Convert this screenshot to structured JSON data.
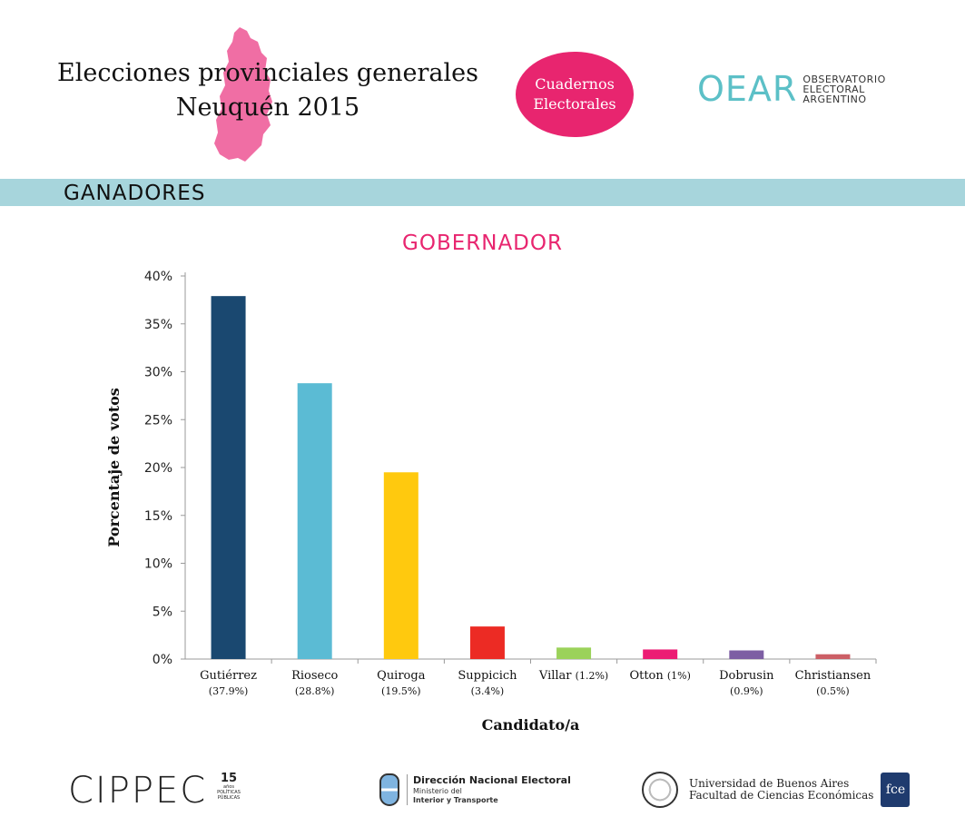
{
  "header": {
    "title_line1": "Elecciones provinciales generales",
    "title_line2": "Neuquén 2015",
    "badge_line1": "Cuadernos",
    "badge_line2": "Electorales",
    "org_mark": "OEAR",
    "org_line1": "OBSERVATORIO",
    "org_line2": "ELECTORAL",
    "org_line3": "ARGENTINO"
  },
  "section": {
    "label": "GANADORES"
  },
  "chart_data": {
    "type": "bar",
    "title": "GOBERNADOR",
    "xlabel": "Candidato/a",
    "ylabel": "Porcentaje de votos",
    "ylim": [
      0,
      40
    ],
    "yticks": [
      0,
      5,
      10,
      15,
      20,
      25,
      30,
      35,
      40
    ],
    "ytick_labels": [
      "0%",
      "5%",
      "10%",
      "15%",
      "20%",
      "25%",
      "30%",
      "35%",
      "40%"
    ],
    "categories": [
      {
        "name": "Gutiérrez",
        "pct_label": "(37.9%)",
        "inline": false
      },
      {
        "name": "Rioseco",
        "pct_label": "(28.8%)",
        "inline": false
      },
      {
        "name": "Quiroga",
        "pct_label": "(19.5%)",
        "inline": false
      },
      {
        "name": "Suppicich",
        "pct_label": "(3.4%)",
        "inline": false
      },
      {
        "name": "Villar",
        "pct_label": "(1.2%)",
        "inline": true
      },
      {
        "name": "Otton",
        "pct_label": "(1%)",
        "inline": true
      },
      {
        "name": "Dobrusin",
        "pct_label": "(0.9%)",
        "inline": false
      },
      {
        "name": "Christiansen",
        "pct_label": "(0.5%)",
        "inline": false
      }
    ],
    "values": [
      37.9,
      28.8,
      19.5,
      3.4,
      1.2,
      1.0,
      0.9,
      0.5
    ],
    "colors": [
      "#1a4870",
      "#5bbbd4",
      "#ffc90e",
      "#ec2b24",
      "#9bd25a",
      "#ec1d74",
      "#7d5ea3",
      "#cc5f66"
    ],
    "grid": false,
    "legend": "none"
  },
  "footer": {
    "cippec": "CIPPEC",
    "cippec_badge": "15",
    "cippec_badge_sub": "años",
    "cippec_sub": "POLÍTICAS PÚBLICAS",
    "dne_line1": "Dirección Nacional Electoral",
    "dne_line2": "Ministerio del",
    "dne_line3": "Interior y Transporte",
    "uba_line1": "Universidad de Buenos Aires",
    "uba_line2": "Facultad de Ciencias Económicas",
    "fce_mark": "fce"
  }
}
